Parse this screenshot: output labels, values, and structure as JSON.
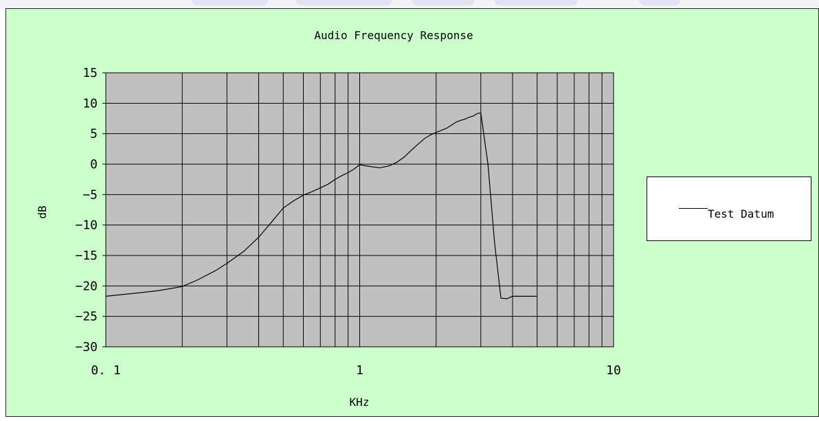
{
  "chart_data": {
    "type": "line",
    "title": "Audio Frequency Response",
    "xlabel": "KHz",
    "ylabel": "dB",
    "xscale": "log",
    "xlim": [
      0.1,
      10
    ],
    "ylim": [
      -30,
      15
    ],
    "x_ticks": [
      0.1,
      1,
      10
    ],
    "x_tick_labels": [
      "0. 1",
      "1",
      "10"
    ],
    "y_ticks": [
      15,
      10,
      5,
      0,
      -5,
      -10,
      -15,
      -20,
      -25,
      -30
    ],
    "y_tick_labels": [
      "15",
      "10",
      "5",
      "0",
      "−5",
      "−10",
      "−15",
      "−20",
      "−25",
      "−30"
    ],
    "grid": true,
    "legend_position": "right",
    "plot_background": "#c0c0c0",
    "chart_background": "#ccffcc",
    "series": [
      {
        "name": "Test Datum",
        "color": "#000000",
        "x": [
          0.1,
          0.13,
          0.16,
          0.2,
          0.23,
          0.27,
          0.3,
          0.35,
          0.4,
          0.45,
          0.5,
          0.55,
          0.6,
          0.65,
          0.7,
          0.75,
          0.8,
          0.85,
          0.9,
          0.95,
          1.0,
          1.1,
          1.2,
          1.3,
          1.4,
          1.5,
          1.6,
          1.7,
          1.8,
          1.9,
          2.0,
          2.2,
          2.4,
          2.5,
          2.6,
          2.7,
          2.8,
          2.9,
          3.0,
          3.2,
          3.4,
          3.6,
          3.8,
          4.0,
          4.5,
          5.0
        ],
        "values": [
          -21.7,
          -21.2,
          -20.8,
          -20.1,
          -19.0,
          -17.5,
          -16.3,
          -14.3,
          -12.0,
          -9.5,
          -7.2,
          -6.0,
          -5.1,
          -4.5,
          -3.9,
          -3.3,
          -2.5,
          -1.9,
          -1.4,
          -0.8,
          -0.1,
          -0.4,
          -0.6,
          -0.3,
          0.3,
          1.2,
          2.3,
          3.3,
          4.2,
          4.8,
          5.2,
          5.9,
          6.9,
          7.2,
          7.4,
          7.7,
          7.9,
          8.3,
          8.4,
          0.0,
          -13.0,
          -22.0,
          -22.1,
          -21.7,
          -21.7,
          -21.7
        ]
      }
    ]
  }
}
